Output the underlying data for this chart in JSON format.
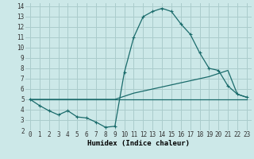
{
  "xlabel": "Humidex (Indice chaleur)",
  "bg_color": "#cce8e8",
  "grid_color": "#aacccc",
  "line_color": "#1a6b6b",
  "xlim": [
    -0.5,
    23.5
  ],
  "ylim": [
    2,
    14.3
  ],
  "xticks": [
    0,
    1,
    2,
    3,
    4,
    5,
    6,
    7,
    8,
    9,
    10,
    11,
    12,
    13,
    14,
    15,
    16,
    17,
    18,
    19,
    20,
    21,
    22,
    23
  ],
  "yticks": [
    2,
    3,
    4,
    5,
    6,
    7,
    8,
    9,
    10,
    11,
    12,
    13,
    14
  ],
  "series_main": {
    "x": [
      0,
      1,
      2,
      3,
      4,
      5,
      6,
      7,
      8,
      9,
      10,
      11,
      12,
      13,
      14,
      15,
      16,
      17,
      18,
      19,
      20,
      21,
      22,
      23
    ],
    "y": [
      5.0,
      4.4,
      3.9,
      3.5,
      3.9,
      3.3,
      3.2,
      2.8,
      2.3,
      2.4,
      7.6,
      11.0,
      13.0,
      13.5,
      13.8,
      13.5,
      12.3,
      11.3,
      9.5,
      8.0,
      7.8,
      6.3,
      5.5,
      5.2
    ]
  },
  "series_line1": {
    "x": [
      0,
      8,
      9,
      10,
      11,
      12,
      13,
      14,
      15,
      16,
      17,
      18,
      19,
      20,
      21,
      22,
      23
    ],
    "y": [
      5.0,
      5.0,
      5.0,
      5.3,
      5.6,
      5.8,
      6.0,
      6.2,
      6.4,
      6.6,
      6.8,
      7.0,
      7.2,
      7.5,
      7.8,
      5.5,
      5.2
    ]
  },
  "series_line2": {
    "x": [
      0,
      23
    ],
    "y": [
      5.0,
      5.0
    ]
  },
  "xlabel_fontsize": 6.5,
  "tick_fontsize": 5.5
}
